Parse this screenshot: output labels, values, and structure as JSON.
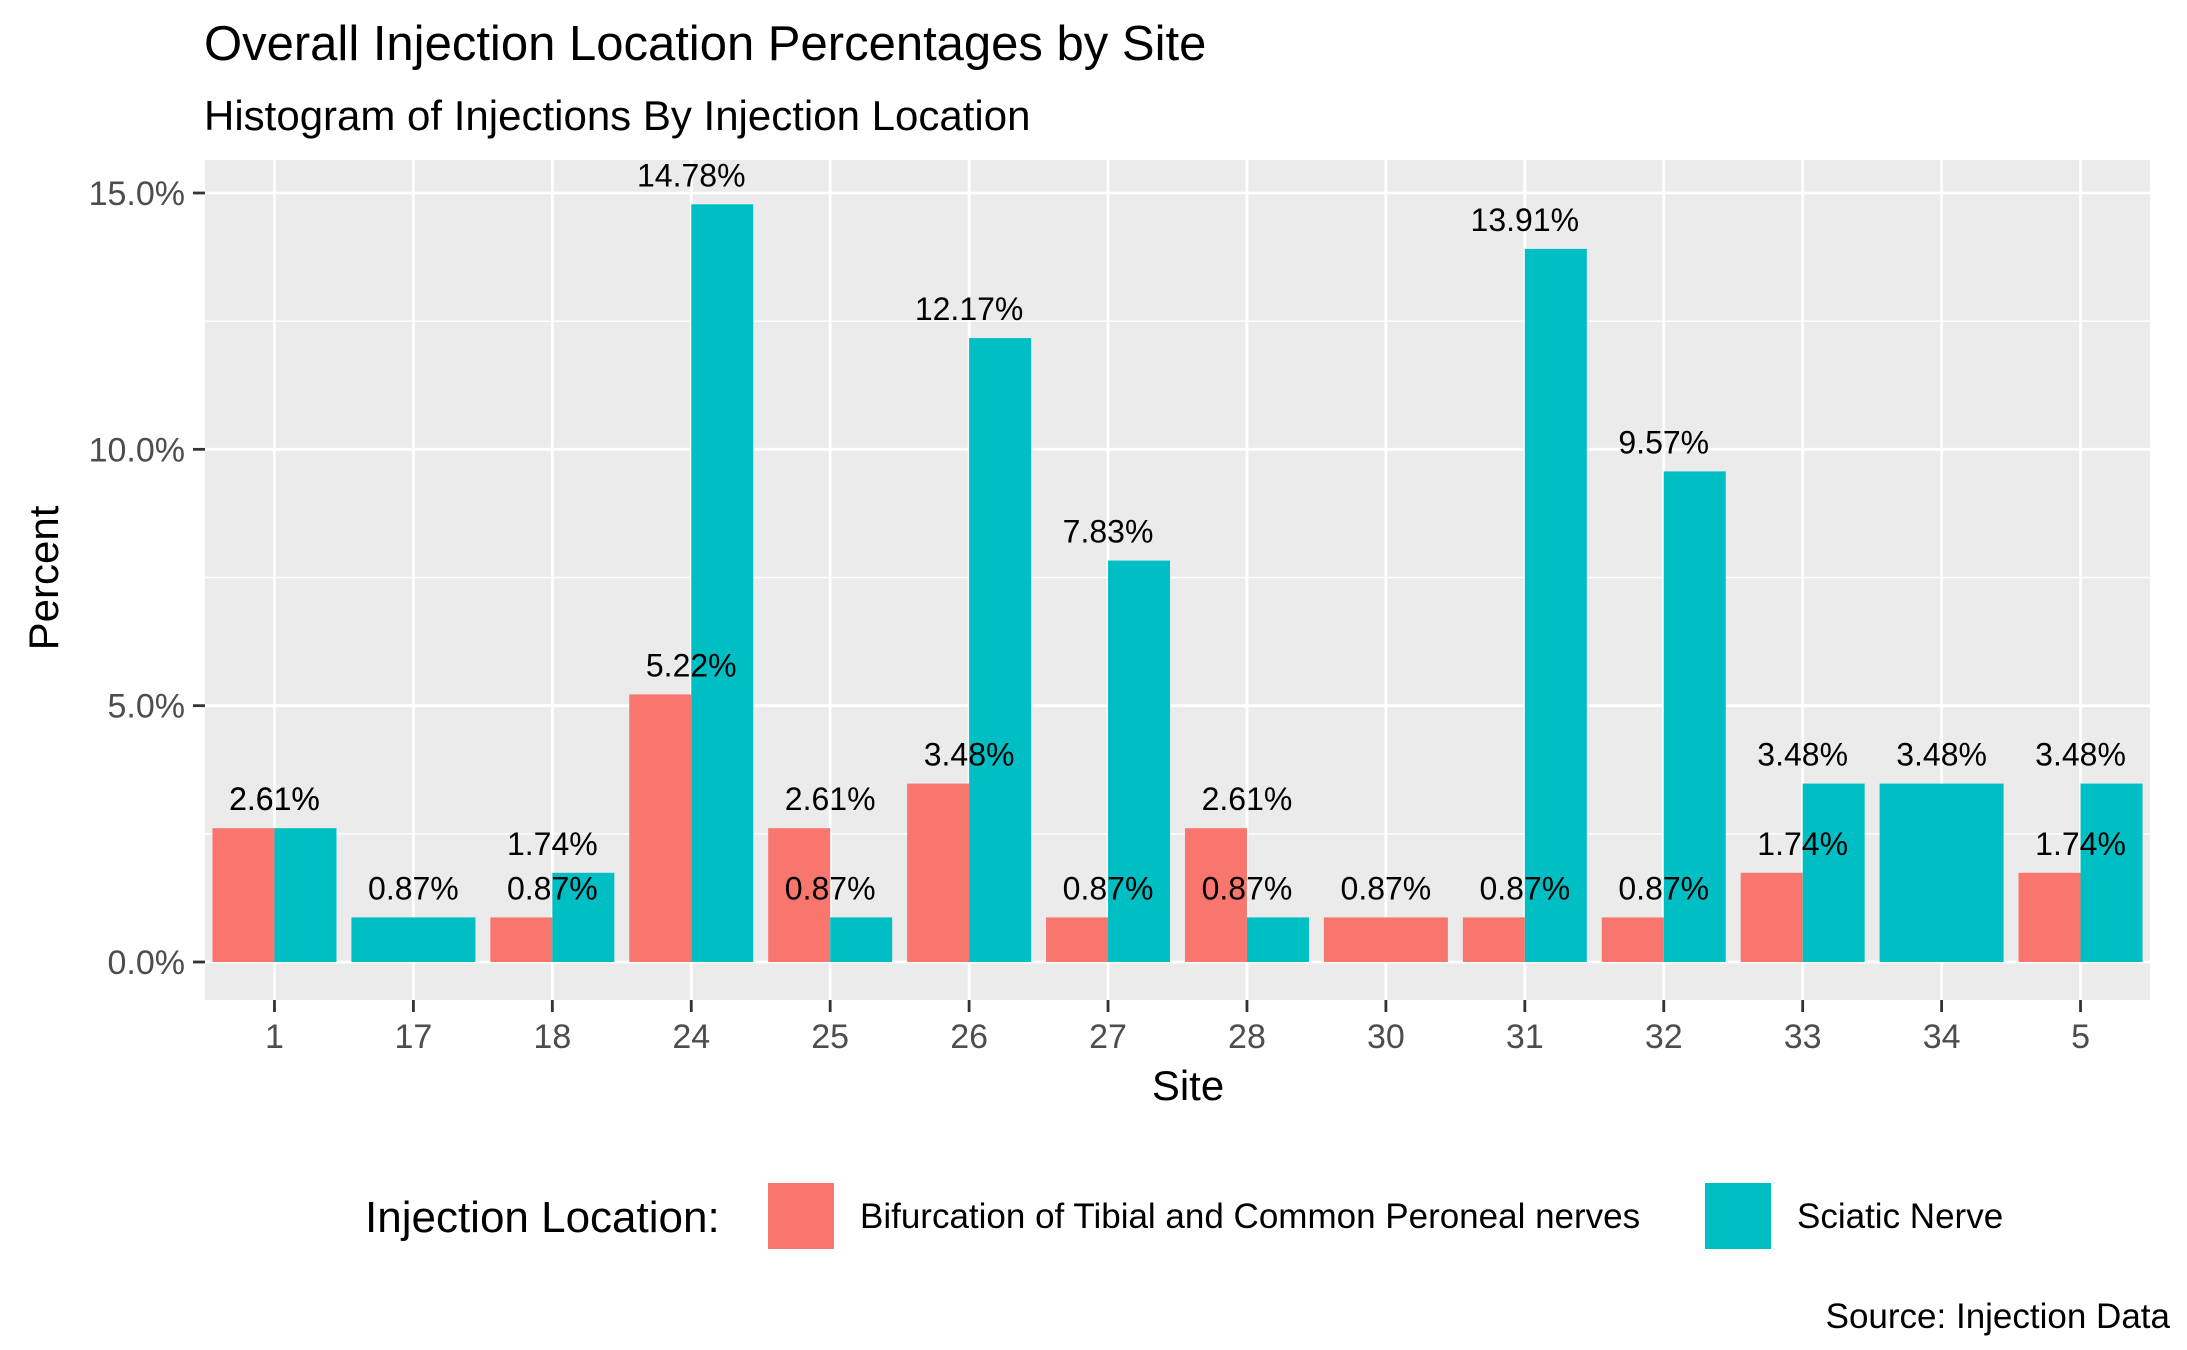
{
  "title": "Overall Injection Location Percentages by Site",
  "subtitle": "Histogram of Injections By Injection Location",
  "caption": "Source: Injection Data",
  "legend": {
    "title": "Injection Location:",
    "items": [
      {
        "label": "Bifurcation of Tibial and Common Peroneal nerves",
        "color": "#F8766D"
      },
      {
        "label": "Sciatic Nerve",
        "color": "#00BFC4"
      }
    ]
  },
  "colors": {
    "panel_background": "#EBEBEB",
    "grid": "#FFFFFF",
    "axis_text": "#4D4D4D"
  },
  "chart_data": {
    "type": "bar",
    "xlabel": "Site",
    "ylabel": "Percent",
    "ylim": [
      -0.4,
      15.1
    ],
    "yticks": [
      0,
      5,
      10,
      15
    ],
    "ytick_labels": [
      "0.0%",
      "5.0%",
      "10.0%",
      "15.0%"
    ],
    "grid": true,
    "legend_position": "bottom",
    "categories": [
      "1",
      "17",
      "18",
      "24",
      "25",
      "26",
      "27",
      "28",
      "30",
      "31",
      "32",
      "33",
      "34",
      "5"
    ],
    "series": [
      {
        "name": "Bifurcation of Tibial and Common Peroneal nerves",
        "color": "#F8766D",
        "values": [
          2.61,
          null,
          0.87,
          5.22,
          2.61,
          3.48,
          0.87,
          2.61,
          0.87,
          0.87,
          0.87,
          1.74,
          null,
          1.74
        ],
        "labels": [
          "2.61%",
          null,
          "0.87%",
          "5.22%",
          "2.61%",
          "3.48%",
          "0.87%",
          "2.61%",
          "0.87%",
          "0.87%",
          "0.87%",
          "1.74%",
          null,
          "1.74%"
        ]
      },
      {
        "name": "Sciatic Nerve",
        "color": "#00BFC4",
        "values": [
          2.61,
          0.87,
          1.74,
          14.78,
          0.87,
          12.17,
          7.83,
          0.87,
          null,
          13.91,
          9.57,
          3.48,
          3.48,
          3.48
        ],
        "labels": [
          "2.61%",
          "0.87%",
          "1.74%",
          "14.78%",
          "0.87%",
          "12.17%",
          "7.83%",
          "0.87%",
          null,
          "13.91%",
          "9.57%",
          "3.48%",
          "3.48%",
          "3.48%"
        ]
      }
    ]
  }
}
